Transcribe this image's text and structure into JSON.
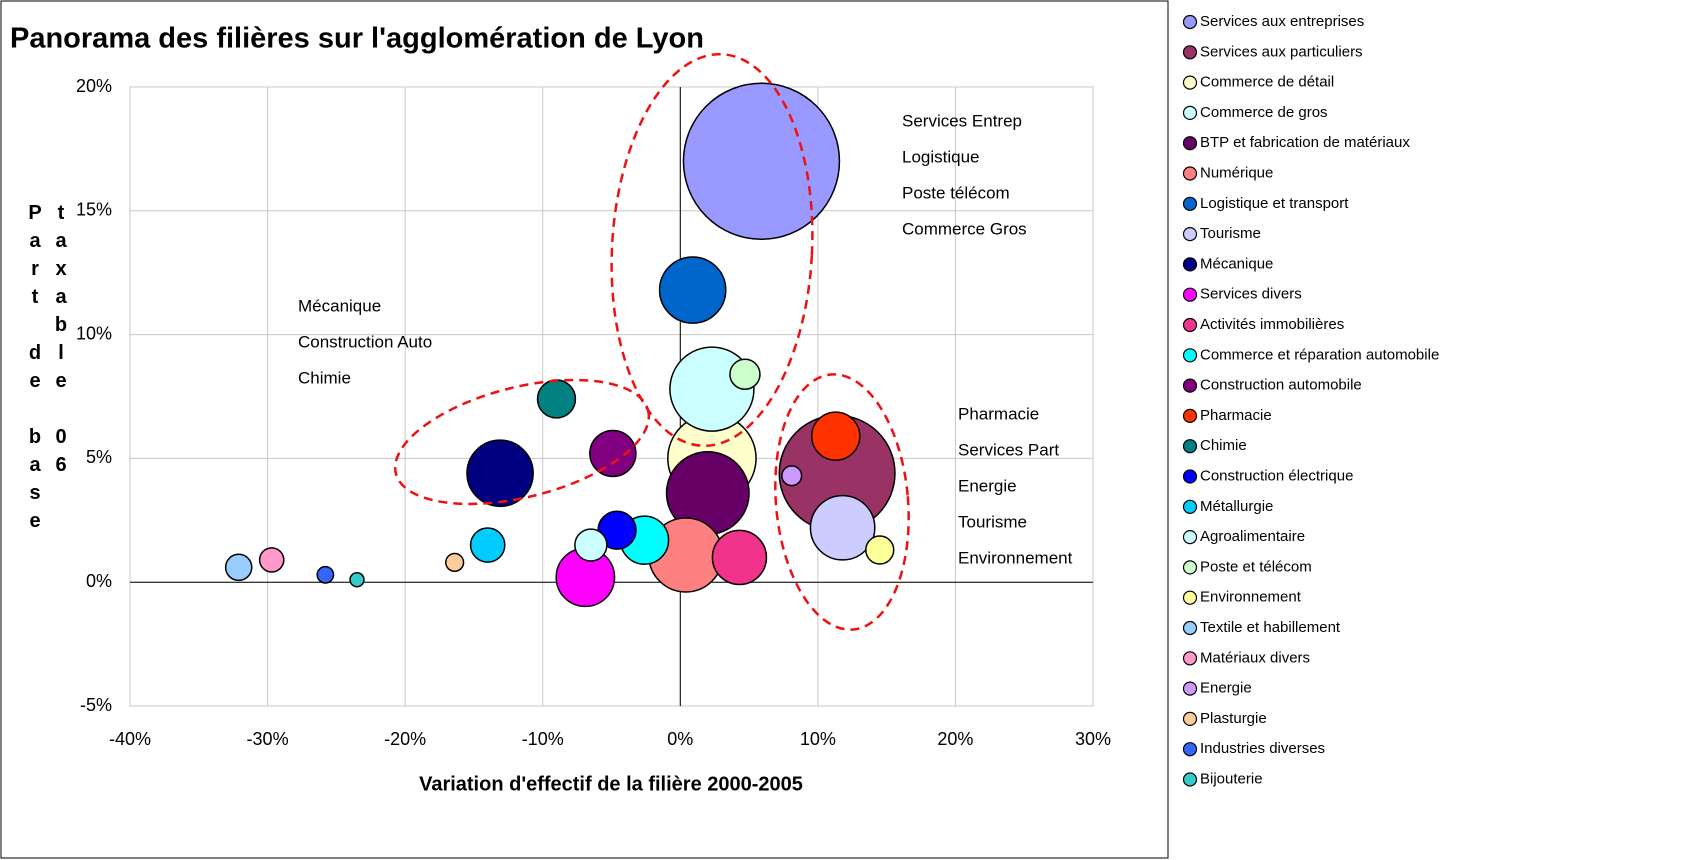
{
  "chart_data": {
    "type": "bubble",
    "title": "Panorama des filières sur l'agglomération de Lyon",
    "x_label": "Variation d'effectif de la filière 2000-2005",
    "y_label": "Part de base taxable 06",
    "xlim": [
      -40,
      30
    ],
    "xticks": [
      {
        "value": -40,
        "label": "-40%"
      },
      {
        "value": -30,
        "label": "-30%"
      },
      {
        "value": -20,
        "label": "-20%"
      },
      {
        "value": -10,
        "label": "-10%"
      },
      {
        "value": 0,
        "label": "0%"
      },
      {
        "value": 10,
        "label": "10%"
      },
      {
        "value": 20,
        "label": "20%"
      },
      {
        "value": 30,
        "label": "30%"
      }
    ],
    "ylim": [
      -5,
      20
    ],
    "yticks": [
      {
        "value": -5,
        "label": "-5%"
      },
      {
        "value": 0,
        "label": "0%"
      },
      {
        "value": 5,
        "label": "5%"
      },
      {
        "value": 10,
        "label": "10%"
      },
      {
        "value": 15,
        "label": "15%"
      },
      {
        "value": 20,
        "label": "20%"
      }
    ],
    "grid": true,
    "legend": "right",
    "annotations": [
      [
        "Services Entrep",
        "Logistique",
        "Poste télécom",
        "Commerce Gros"
      ],
      [
        "Mécanique",
        "Construction Auto",
        "Chimie"
      ],
      [
        "Pharmacie",
        "Services Part",
        "Energie",
        "Tourisme",
        "Environnement"
      ]
    ],
    "series": [
      {
        "name": "Services aux entreprises",
        "color": "#9999ff",
        "x": 5.9,
        "y": 17.0,
        "size": 100
      },
      {
        "name": "Services aux particuliers",
        "color": "#993366",
        "x": 11.4,
        "y": 4.4,
        "size": 55
      },
      {
        "name": "Commerce de détail",
        "color": "#ffffcc",
        "x": 2.3,
        "y": 5.0,
        "size": 32
      },
      {
        "name": "Commerce de gros",
        "color": "#ccffff",
        "x": 2.3,
        "y": 7.8,
        "size": 29
      },
      {
        "name": "BTP et fabrication de matériaux",
        "color": "#660066",
        "x": 2.0,
        "y": 3.6,
        "size": 28
      },
      {
        "name": "Numérique",
        "color": "#ff8080",
        "x": 0.4,
        "y": 1.1,
        "size": 22.5
      },
      {
        "name": "Logistique et transport",
        "color": "#0066cc",
        "x": 0.9,
        "y": 11.8,
        "size": 18
      },
      {
        "name": "Tourisme",
        "color": "#ccccff",
        "x": 11.8,
        "y": 2.2,
        "size": 17
      },
      {
        "name": "Mécanique",
        "color": "#000080",
        "x": -13.1,
        "y": 4.4,
        "size": 18
      },
      {
        "name": "Services divers",
        "color": "#ff00ff",
        "x": -6.9,
        "y": 0.2,
        "size": 14
      },
      {
        "name": "Activités immobilières",
        "color": "#f0348c",
        "x": 4.3,
        "y": 1.0,
        "size": 12
      },
      {
        "name": "Commerce et réparation automobile",
        "color": "#00ffff",
        "x": -2.6,
        "y": 1.7,
        "size": 9.5
      },
      {
        "name": "Construction automobile",
        "color": "#800080",
        "x": -4.9,
        "y": 5.2,
        "size": 8.7
      },
      {
        "name": "Pharmacie",
        "color": "#ff3300",
        "x": 11.3,
        "y": 5.9,
        "size": 9.5
      },
      {
        "name": "Chimie",
        "color": "#008080",
        "x": -9.0,
        "y": 7.4,
        "size": 5.9
      },
      {
        "name": "Construction électrique",
        "color": "#0000ff",
        "x": -4.6,
        "y": 2.1,
        "size": 5.9
      },
      {
        "name": "Métallurgie",
        "color": "#00ccff",
        "x": -14.0,
        "y": 1.5,
        "size": 4.8
      },
      {
        "name": "Agroalimentaire",
        "color": "#ccffff",
        "x": -6.5,
        "y": 1.5,
        "size": 4.2
      },
      {
        "name": "Poste et télécom",
        "color": "#ccffcc",
        "x": 4.7,
        "y": 8.4,
        "size": 3.7
      },
      {
        "name": "Environnement",
        "color": "#ffff99",
        "x": 14.5,
        "y": 1.3,
        "size": 3.2
      },
      {
        "name": "Textile et habillement",
        "color": "#99ccff",
        "x": -32.1,
        "y": 0.6,
        "size": 2.8
      },
      {
        "name": "Matériaux divers",
        "color": "#ff99cc",
        "x": -29.7,
        "y": 0.9,
        "size": 2.4
      },
      {
        "name": "Energie",
        "color": "#cc99ff",
        "x": 8.1,
        "y": 4.3,
        "size": 1.6
      },
      {
        "name": "Plasturgie",
        "color": "#ffcc99",
        "x": -16.4,
        "y": 0.8,
        "size": 1.3
      },
      {
        "name": "Industries diverses",
        "color": "#3366ff",
        "x": -25.8,
        "y": 0.3,
        "size": 1.1
      },
      {
        "name": "Bijouterie",
        "color": "#33cccc",
        "x": -23.5,
        "y": 0.1,
        "size": 0.8
      }
    ]
  }
}
